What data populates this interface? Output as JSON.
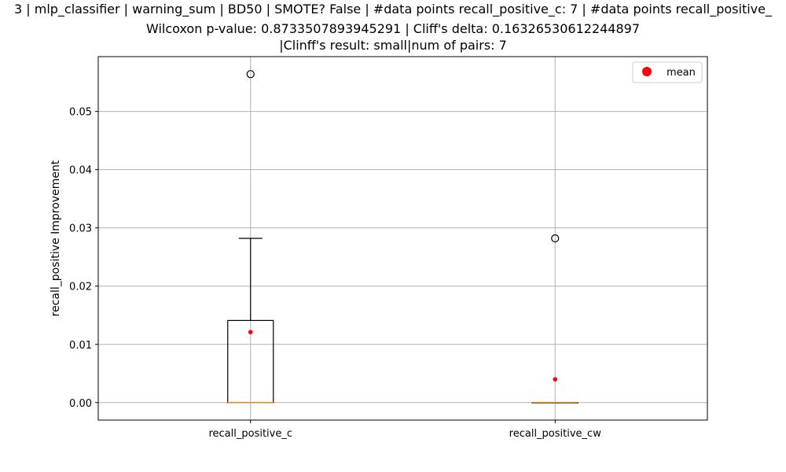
{
  "title_lines": [
    "3 | mlp_classifier | warning_sum | BD50 | SMOTE? False | #data points recall_positive_c: 7 | #data points recall_positive_",
    "Wilcoxon p-value: 0.8733507893945291 | Cliff's delta: 0.16326530612244897",
    "|Clinff's result: small|num of pairs: 7"
  ],
  "chart_data": {
    "type": "boxplot",
    "ylabel": "recall_positive Improvement",
    "xlabel": "",
    "ylim": [
      -0.003,
      0.0594
    ],
    "yticks": [
      0.0,
      0.01,
      0.02,
      0.03,
      0.04,
      0.05
    ],
    "ytick_labels": [
      "0.00",
      "0.01",
      "0.02",
      "0.03",
      "0.04",
      "0.05"
    ],
    "grid": true,
    "legend": {
      "placement": "top-right",
      "entries": [
        "mean"
      ]
    },
    "colors": {
      "mean": "#ff0000",
      "median": "#ff7f0e",
      "box": "#000000",
      "grid": "#b0b0b0"
    },
    "series": [
      {
        "name": "recall_positive_c",
        "q1": 0.0,
        "median": 0.0,
        "q3": 0.0141,
        "whisker_low": 0.0,
        "whisker_high": 0.0282,
        "outliers": [
          0.0564
        ],
        "mean": 0.0121
      },
      {
        "name": "recall_positive_cw",
        "q1": 0.0,
        "median": 0.0,
        "q3": 0.0,
        "whisker_low": 0.0,
        "whisker_high": 0.0,
        "outliers": [
          0.0282
        ],
        "mean": 0.004
      }
    ]
  }
}
